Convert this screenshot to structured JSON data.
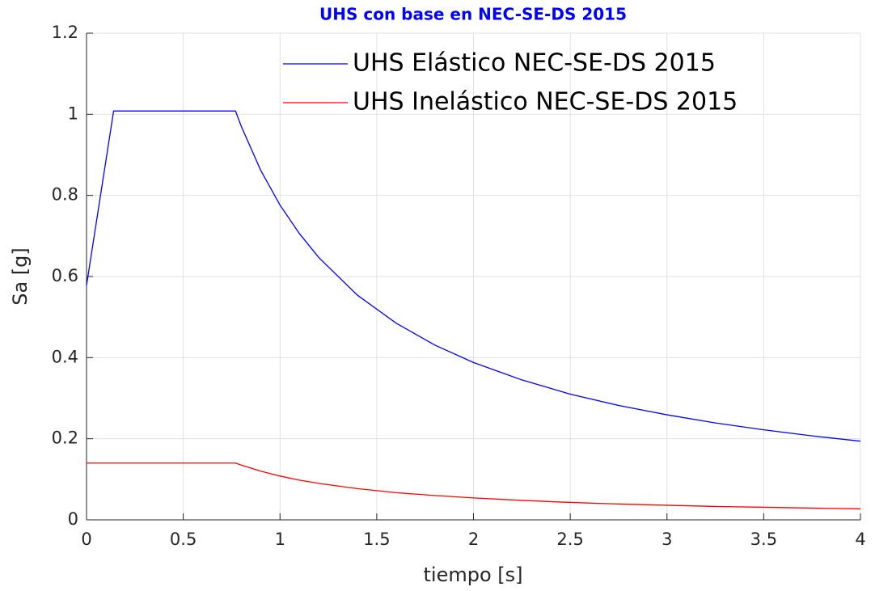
{
  "chart_data": {
    "type": "line",
    "title": "UHS con base en NEC-SE-DS 2015",
    "x_label": "tiempo [s]",
    "y_label": "Sa [g]",
    "x": [
      0,
      0.14,
      0.77,
      0.8,
      0.9,
      1.0,
      1.1,
      1.2,
      1.4,
      1.6,
      1.8,
      2.0,
      2.25,
      2.5,
      2.75,
      3.0,
      3.25,
      3.5,
      3.75,
      4.0
    ],
    "series": [
      {
        "name": "UHS Elástico NEC-SE-DS 2015",
        "color": "#0000ff",
        "values": [
          0.578,
          1.008,
          1.008,
          0.97,
          0.862,
          0.776,
          0.706,
          0.647,
          0.554,
          0.485,
          0.431,
          0.388,
          0.345,
          0.31,
          0.282,
          0.259,
          0.239,
          0.222,
          0.207,
          0.194
        ]
      },
      {
        "name": "UHS Inelástico NEC-SE-DS 2015",
        "color": "#ff0000",
        "values": [
          0.14,
          0.14,
          0.14,
          0.135,
          0.12,
          0.108,
          0.098,
          0.09,
          0.077,
          0.067,
          0.06,
          0.054,
          0.048,
          0.043,
          0.039,
          0.036,
          0.033,
          0.031,
          0.029,
          0.027
        ]
      }
    ],
    "xlim": [
      0,
      4
    ],
    "xticks": [
      0,
      0.5,
      1,
      1.5,
      2,
      2.5,
      3,
      3.5,
      4
    ],
    "ylim": [
      0,
      1.2
    ],
    "yticks": [
      0,
      0.2,
      0.4,
      0.6,
      0.8,
      1,
      1.2
    ],
    "grid": true,
    "legend": "top-right"
  }
}
